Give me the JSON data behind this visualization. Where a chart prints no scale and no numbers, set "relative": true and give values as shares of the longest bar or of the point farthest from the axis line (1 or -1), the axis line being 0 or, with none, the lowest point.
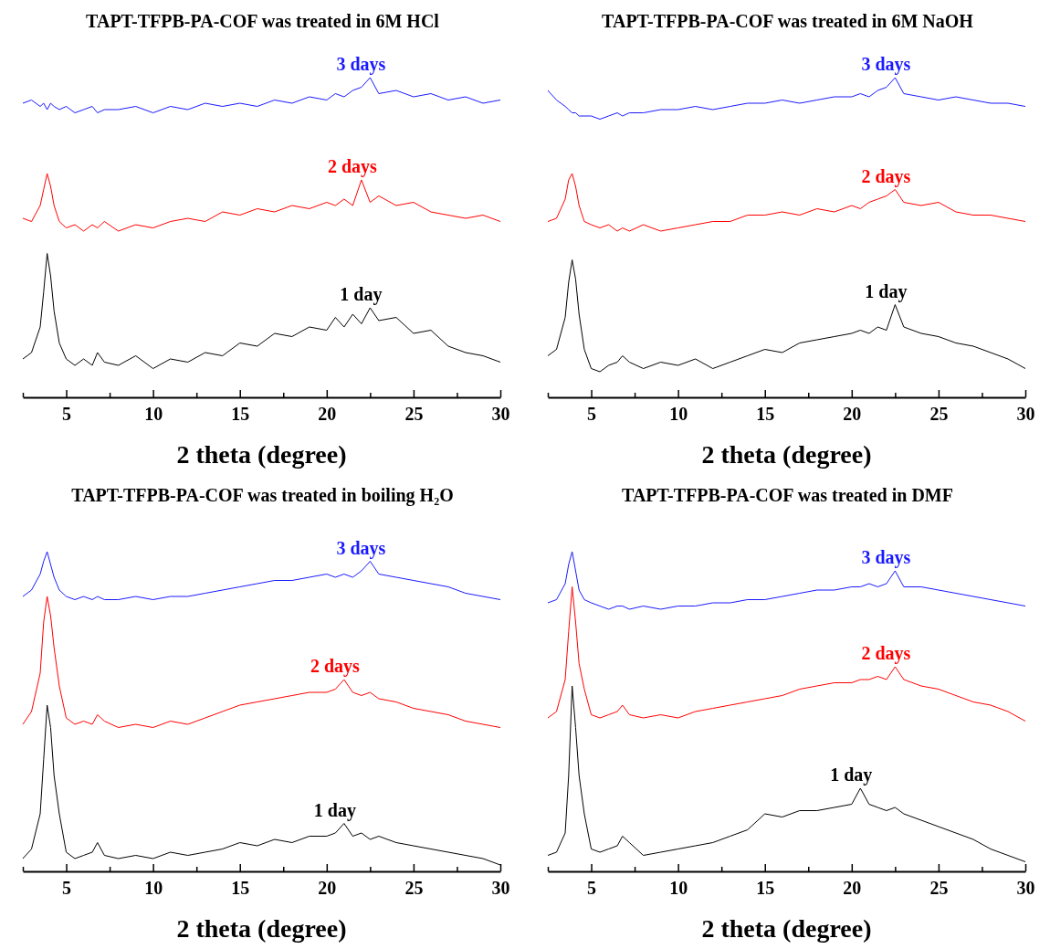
{
  "chart_data": [
    {
      "type": "line",
      "title": "TAPT-TFPB-PA-COF was treated in 6M HCl",
      "xlabel": "2 theta (degree)",
      "relative": true,
      "xlim": [
        2.5,
        30
      ],
      "xticks": [
        {
          "value": 2.5,
          "label": null
        },
        5,
        {
          "value": 7.5,
          "label": null
        },
        10,
        {
          "value": 12.5,
          "label": null
        },
        15,
        {
          "value": 17.5,
          "label": null
        },
        20,
        {
          "value": 22.5,
          "label": null
        },
        25,
        {
          "value": 27.5,
          "label": null
        },
        30
      ],
      "tick_labels": "x",
      "legend": false,
      "grid": false,
      "x": [
        2.5,
        3,
        3.5,
        3.7,
        3.9,
        4.1,
        4.3,
        4.6,
        5,
        5.5,
        6,
        6.5,
        6.8,
        7.2,
        8,
        9,
        10,
        11,
        12,
        13,
        14,
        15,
        16,
        17,
        18,
        19,
        20,
        20.5,
        21,
        21.5,
        22,
        22.5,
        23,
        24,
        25,
        26,
        27,
        28,
        29,
        30
      ],
      "series": [
        {
          "name": "3 days",
          "color": "#1a1aff",
          "values": [
            0.92,
            0.93,
            0.91,
            0.92,
            0.9,
            0.92,
            0.91,
            0.9,
            0.91,
            0.89,
            0.9,
            0.91,
            0.89,
            0.9,
            0.9,
            0.91,
            0.89,
            0.91,
            0.9,
            0.92,
            0.91,
            0.92,
            0.91,
            0.93,
            0.92,
            0.94,
            0.93,
            0.95,
            0.94,
            0.96,
            0.97,
            1.0,
            0.95,
            0.96,
            0.94,
            0.95,
            0.93,
            0.94,
            0.92,
            0.93
          ]
        },
        {
          "name": "2 days",
          "color": "#ff0000",
          "values": [
            0.56,
            0.55,
            0.6,
            0.65,
            0.7,
            0.66,
            0.6,
            0.55,
            0.53,
            0.54,
            0.52,
            0.54,
            0.53,
            0.55,
            0.52,
            0.54,
            0.53,
            0.55,
            0.56,
            0.55,
            0.58,
            0.57,
            0.59,
            0.58,
            0.6,
            0.59,
            0.61,
            0.6,
            0.62,
            0.6,
            0.68,
            0.61,
            0.63,
            0.6,
            0.61,
            0.58,
            0.57,
            0.56,
            0.57,
            0.55
          ]
        },
        {
          "name": "1 day",
          "color": "#000000",
          "values": [
            0.12,
            0.14,
            0.22,
            0.33,
            0.45,
            0.38,
            0.27,
            0.17,
            0.12,
            0.1,
            0.12,
            0.1,
            0.14,
            0.11,
            0.1,
            0.13,
            0.09,
            0.12,
            0.11,
            0.14,
            0.13,
            0.17,
            0.16,
            0.2,
            0.19,
            0.22,
            0.21,
            0.25,
            0.22,
            0.26,
            0.23,
            0.28,
            0.24,
            0.25,
            0.2,
            0.21,
            0.16,
            0.14,
            0.13,
            0.11
          ]
        }
      ]
    },
    {
      "type": "line",
      "title": "TAPT-TFPB-PA-COF was treated in 6M NaOH",
      "xlabel": "2 theta (degree)",
      "relative": true,
      "xlim": [
        2.5,
        30
      ],
      "xticks": [
        {
          "value": 2.5,
          "label": null
        },
        5,
        {
          "value": 7.5,
          "label": null
        },
        10,
        {
          "value": 12.5,
          "label": null
        },
        15,
        {
          "value": 17.5,
          "label": null
        },
        20,
        {
          "value": 22.5,
          "label": null
        },
        25,
        {
          "value": 27.5,
          "label": null
        },
        30
      ],
      "tick_labels": "x",
      "legend": false,
      "grid": false,
      "x": [
        2.5,
        3,
        3.5,
        3.7,
        3.9,
        4.1,
        4.3,
        4.6,
        5,
        5.5,
        6,
        6.5,
        6.8,
        7.2,
        8,
        9,
        10,
        11,
        12,
        13,
        14,
        15,
        16,
        17,
        18,
        19,
        20,
        20.5,
        21,
        21.5,
        22,
        22.5,
        23,
        24,
        25,
        26,
        27,
        28,
        29,
        30
      ],
      "series": [
        {
          "name": "3 days",
          "color": "#1a1aff",
          "values": [
            0.96,
            0.93,
            0.91,
            0.9,
            0.89,
            0.89,
            0.88,
            0.88,
            0.88,
            0.87,
            0.88,
            0.89,
            0.88,
            0.89,
            0.89,
            0.9,
            0.9,
            0.91,
            0.9,
            0.91,
            0.92,
            0.92,
            0.93,
            0.92,
            0.93,
            0.94,
            0.94,
            0.95,
            0.94,
            0.96,
            0.97,
            1.0,
            0.95,
            0.94,
            0.93,
            0.94,
            0.93,
            0.92,
            0.92,
            0.91
          ]
        },
        {
          "name": "2 days",
          "color": "#ff0000",
          "values": [
            0.55,
            0.56,
            0.62,
            0.68,
            0.7,
            0.66,
            0.6,
            0.55,
            0.54,
            0.53,
            0.54,
            0.52,
            0.53,
            0.52,
            0.54,
            0.52,
            0.53,
            0.54,
            0.55,
            0.55,
            0.57,
            0.57,
            0.58,
            0.57,
            0.59,
            0.58,
            0.6,
            0.59,
            0.61,
            0.62,
            0.63,
            0.65,
            0.61,
            0.6,
            0.61,
            0.58,
            0.57,
            0.57,
            0.56,
            0.55
          ]
        },
        {
          "name": "1 day",
          "color": "#000000",
          "values": [
            0.13,
            0.15,
            0.25,
            0.36,
            0.43,
            0.37,
            0.26,
            0.15,
            0.09,
            0.08,
            0.1,
            0.11,
            0.13,
            0.11,
            0.09,
            0.11,
            0.1,
            0.12,
            0.09,
            0.11,
            0.13,
            0.15,
            0.14,
            0.17,
            0.18,
            0.19,
            0.2,
            0.21,
            0.2,
            0.22,
            0.21,
            0.29,
            0.22,
            0.2,
            0.19,
            0.17,
            0.16,
            0.14,
            0.12,
            0.09
          ]
        }
      ]
    },
    {
      "type": "line",
      "title": "TAPT-TFPB-PA-COF was treated in boiling H₂O",
      "xlabel": "2 theta (degree)",
      "relative": true,
      "xlim": [
        2.5,
        30
      ],
      "xticks": [
        {
          "value": 2.5,
          "label": null
        },
        5,
        {
          "value": 7.5,
          "label": null
        },
        10,
        {
          "value": 12.5,
          "label": null
        },
        15,
        {
          "value": 17.5,
          "label": null
        },
        20,
        {
          "value": 22.5,
          "label": null
        },
        25,
        {
          "value": 27.5,
          "label": null
        },
        30
      ],
      "tick_labels": "x",
      "legend": false,
      "grid": false,
      "x": [
        2.5,
        3,
        3.5,
        3.7,
        3.9,
        4.1,
        4.3,
        4.6,
        5,
        5.5,
        6,
        6.5,
        6.8,
        7.2,
        8,
        9,
        10,
        11,
        12,
        13,
        14,
        15,
        16,
        17,
        18,
        19,
        20,
        20.5,
        21,
        21.5,
        22,
        22.5,
        23,
        24,
        25,
        26,
        27,
        28,
        29,
        30
      ],
      "series": [
        {
          "name": "3 days",
          "color": "#1a1aff",
          "values": [
            0.86,
            0.88,
            0.93,
            0.97,
            1.0,
            0.96,
            0.92,
            0.88,
            0.86,
            0.85,
            0.86,
            0.85,
            0.86,
            0.85,
            0.85,
            0.86,
            0.85,
            0.86,
            0.86,
            0.87,
            0.88,
            0.89,
            0.9,
            0.91,
            0.91,
            0.92,
            0.93,
            0.92,
            0.93,
            0.92,
            0.94,
            0.97,
            0.93,
            0.92,
            0.91,
            0.9,
            0.89,
            0.87,
            0.86,
            0.85
          ]
        },
        {
          "name": "2 days",
          "color": "#ff0000",
          "values": [
            0.46,
            0.5,
            0.62,
            0.78,
            0.86,
            0.8,
            0.7,
            0.58,
            0.48,
            0.46,
            0.47,
            0.46,
            0.49,
            0.47,
            0.45,
            0.46,
            0.45,
            0.47,
            0.46,
            0.48,
            0.5,
            0.52,
            0.53,
            0.54,
            0.55,
            0.56,
            0.56,
            0.57,
            0.6,
            0.56,
            0.55,
            0.56,
            0.54,
            0.53,
            0.51,
            0.5,
            0.49,
            0.47,
            0.46,
            0.45
          ]
        },
        {
          "name": "1 day",
          "color": "#000000",
          "values": [
            0.04,
            0.07,
            0.18,
            0.35,
            0.52,
            0.45,
            0.3,
            0.18,
            0.06,
            0.04,
            0.05,
            0.06,
            0.09,
            0.05,
            0.04,
            0.05,
            0.04,
            0.06,
            0.05,
            0.06,
            0.07,
            0.09,
            0.08,
            0.1,
            0.09,
            0.11,
            0.11,
            0.12,
            0.15,
            0.11,
            0.12,
            0.1,
            0.11,
            0.09,
            0.08,
            0.07,
            0.06,
            0.05,
            0.04,
            0.02
          ]
        }
      ]
    },
    {
      "type": "line",
      "title": "TAPT-TFPB-PA-COF was treated in DMF",
      "xlabel": "2 theta (degree)",
      "relative": true,
      "xlim": [
        2.5,
        30
      ],
      "xticks": [
        {
          "value": 2.5,
          "label": null
        },
        5,
        {
          "value": 7.5,
          "label": null
        },
        10,
        {
          "value": 12.5,
          "label": null
        },
        15,
        {
          "value": 17.5,
          "label": null
        },
        20,
        {
          "value": 22.5,
          "label": null
        },
        25,
        {
          "value": 27.5,
          "label": null
        },
        30
      ],
      "tick_labels": "x",
      "legend": false,
      "grid": false,
      "x": [
        2.5,
        3,
        3.5,
        3.7,
        3.9,
        4.1,
        4.3,
        4.6,
        5,
        5.5,
        6,
        6.5,
        6.8,
        7.2,
        8,
        9,
        10,
        11,
        12,
        13,
        14,
        15,
        16,
        17,
        18,
        19,
        20,
        20.5,
        21,
        21.5,
        22,
        22.5,
        23,
        24,
        25,
        26,
        27,
        28,
        29,
        30
      ],
      "series": [
        {
          "name": "3 days",
          "color": "#1a1aff",
          "values": [
            0.84,
            0.85,
            0.9,
            0.96,
            1.0,
            0.94,
            0.88,
            0.85,
            0.84,
            0.83,
            0.82,
            0.83,
            0.83,
            0.82,
            0.83,
            0.82,
            0.83,
            0.83,
            0.84,
            0.84,
            0.85,
            0.85,
            0.86,
            0.87,
            0.88,
            0.88,
            0.89,
            0.89,
            0.9,
            0.89,
            0.9,
            0.94,
            0.89,
            0.89,
            0.88,
            0.87,
            0.86,
            0.85,
            0.84,
            0.83
          ]
        },
        {
          "name": "2 days",
          "color": "#ff0000",
          "values": [
            0.48,
            0.5,
            0.6,
            0.75,
            0.89,
            0.78,
            0.65,
            0.57,
            0.49,
            0.48,
            0.49,
            0.5,
            0.52,
            0.49,
            0.48,
            0.49,
            0.48,
            0.5,
            0.51,
            0.52,
            0.53,
            0.54,
            0.55,
            0.57,
            0.58,
            0.59,
            0.59,
            0.6,
            0.6,
            0.61,
            0.6,
            0.64,
            0.6,
            0.58,
            0.57,
            0.55,
            0.53,
            0.52,
            0.5,
            0.47
          ]
        },
        {
          "name": "1 day",
          "color": "#000000",
          "values": [
            0.05,
            0.06,
            0.12,
            0.3,
            0.58,
            0.45,
            0.3,
            0.18,
            0.07,
            0.06,
            0.07,
            0.08,
            0.11,
            0.09,
            0.05,
            0.06,
            0.07,
            0.08,
            0.09,
            0.11,
            0.13,
            0.18,
            0.17,
            0.19,
            0.19,
            0.2,
            0.21,
            0.26,
            0.21,
            0.2,
            0.19,
            0.2,
            0.18,
            0.16,
            0.14,
            0.12,
            0.1,
            0.07,
            0.05,
            0.03
          ]
        }
      ]
    }
  ]
}
